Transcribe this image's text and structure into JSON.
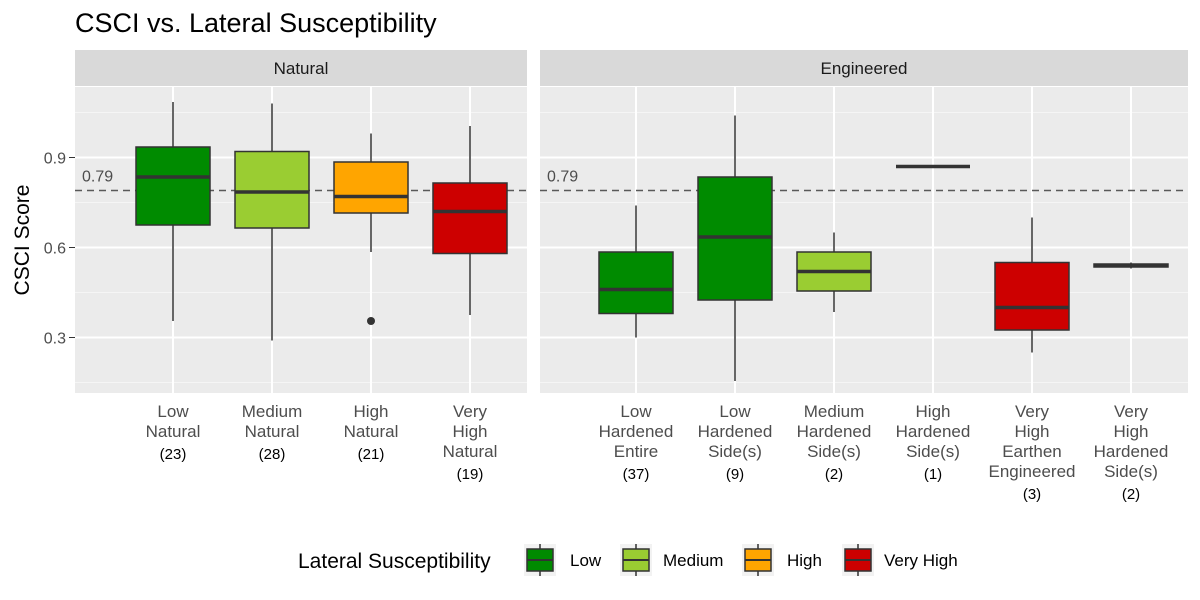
{
  "chart_data": {
    "type": "boxplot",
    "title": "CSCI vs. Lateral Susceptibility",
    "ylabel": "CSCI Score",
    "ylim": [
      0.115,
      1.135
    ],
    "yticks": [
      0.3,
      0.6,
      0.9
    ],
    "ytick_labels": [
      "0.3",
      "0.6",
      "0.9"
    ],
    "reference_line": {
      "value": 0.79,
      "label": "0.79"
    },
    "legend": {
      "title": "Lateral Susceptibility",
      "position": "bottom",
      "entries": [
        {
          "label": "Low",
          "color": "#008B00"
        },
        {
          "label": "Medium",
          "color": "#9ACD32"
        },
        {
          "label": "High",
          "color": "#FFA500"
        },
        {
          "label": "Very High",
          "color": "#CD0000"
        }
      ]
    },
    "panels": [
      {
        "strip": "Natural",
        "groups": [
          {
            "label_lines": [
              "Low",
              "Natural"
            ],
            "n_label": "(23)",
            "susceptibility": "Low",
            "whisker_low": 0.355,
            "q1": 0.675,
            "median": 0.835,
            "q3": 0.935,
            "whisker_high": 1.085,
            "outliers": []
          },
          {
            "label_lines": [
              "Medium",
              "Natural"
            ],
            "n_label": "(28)",
            "susceptibility": "Medium",
            "whisker_low": 0.29,
            "q1": 0.665,
            "median": 0.785,
            "q3": 0.92,
            "whisker_high": 1.08,
            "outliers": []
          },
          {
            "label_lines": [
              "High",
              "Natural"
            ],
            "n_label": "(21)",
            "susceptibility": "High",
            "whisker_low": 0.585,
            "q1": 0.715,
            "median": 0.77,
            "q3": 0.885,
            "whisker_high": 0.98,
            "outliers": [
              0.355
            ]
          },
          {
            "label_lines": [
              "Very",
              "High",
              "Natural"
            ],
            "n_label": "(19)",
            "susceptibility": "Very High",
            "whisker_low": 0.375,
            "q1": 0.58,
            "median": 0.72,
            "q3": 0.815,
            "whisker_high": 1.005,
            "outliers": []
          }
        ]
      },
      {
        "strip": "Engineered",
        "groups": [
          {
            "label_lines": [
              "Low",
              "Hardened",
              "Entire"
            ],
            "n_label": "(37)",
            "susceptibility": "Low",
            "whisker_low": 0.3,
            "q1": 0.38,
            "median": 0.46,
            "q3": 0.585,
            "whisker_high": 0.74,
            "outliers": []
          },
          {
            "label_lines": [
              "Low",
              "Hardened",
              "Side(s)"
            ],
            "n_label": "(9)",
            "susceptibility": "Low",
            "whisker_low": 0.155,
            "q1": 0.425,
            "median": 0.635,
            "q3": 0.835,
            "whisker_high": 1.04,
            "outliers": []
          },
          {
            "label_lines": [
              "Medium",
              "Hardened",
              "Side(s)"
            ],
            "n_label": "(2)",
            "susceptibility": "Medium",
            "whisker_low": 0.385,
            "q1": 0.455,
            "median": 0.52,
            "q3": 0.585,
            "whisker_high": 0.65,
            "outliers": []
          },
          {
            "label_lines": [
              "High",
              "Hardened",
              "Side(s)"
            ],
            "n_label": "(1)",
            "susceptibility": "High",
            "whisker_low": 0.87,
            "q1": 0.87,
            "median": 0.87,
            "q3": 0.87,
            "whisker_high": 0.87,
            "outliers": []
          },
          {
            "label_lines": [
              "Very",
              "High",
              "Earthen",
              "Engineered"
            ],
            "n_label": "(3)",
            "susceptibility": "Very High",
            "whisker_low": 0.25,
            "q1": 0.325,
            "median": 0.4,
            "q3": 0.55,
            "whisker_high": 0.7,
            "outliers": []
          },
          {
            "label_lines": [
              "Very",
              "High",
              "Hardened",
              "Side(s)"
            ],
            "n_label": "(2)",
            "susceptibility": "Very High",
            "whisker_low": 0.53,
            "q1": 0.535,
            "median": 0.54,
            "q3": 0.545,
            "whisker_high": 0.55,
            "outliers": []
          }
        ]
      }
    ]
  }
}
